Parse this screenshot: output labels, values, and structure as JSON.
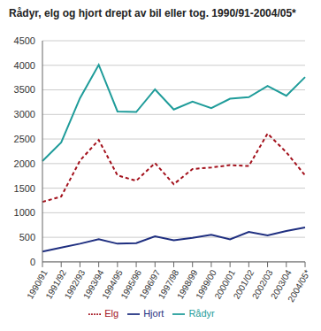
{
  "chart_data": {
    "type": "line",
    "title": "Rådyr, elg og hjort drept av bil eller tog. 1990/91-2004/05*",
    "categories": [
      "1990/91",
      "1991/92",
      "1992/93",
      "1993/94",
      "1994/95",
      "1995/96",
      "1996/97",
      "1997/98",
      "1998/99",
      "1999/00",
      "2000/01",
      "2001/02",
      "2002/03",
      "2003/04",
      "2004/05*"
    ],
    "series": [
      {
        "name": "Rådyr",
        "color": "#1f9c9a",
        "line_style": "solid",
        "values": [
          2050,
          2430,
          3330,
          4010,
          3060,
          3050,
          3510,
          3100,
          3260,
          3130,
          3320,
          3350,
          3580,
          3380,
          3760
        ]
      },
      {
        "name": "Elg",
        "color": "#a3111c",
        "line_style": "dashed",
        "values": [
          1220,
          1330,
          2060,
          2480,
          1760,
          1650,
          2010,
          1580,
          1890,
          1920,
          1970,
          1950,
          2610,
          2230,
          1760
        ]
      },
      {
        "name": "Hjort",
        "color": "#1f2f80",
        "line_style": "solid",
        "values": [
          210,
          290,
          370,
          460,
          370,
          380,
          520,
          440,
          490,
          550,
          460,
          610,
          540,
          630,
          700
        ]
      }
    ],
    "ylim": [
      0,
      4500
    ],
    "yticks": [
      0,
      500,
      1000,
      1500,
      2000,
      2500,
      3000,
      3500,
      4000,
      4500
    ],
    "grid": true,
    "legend": "bottom"
  }
}
